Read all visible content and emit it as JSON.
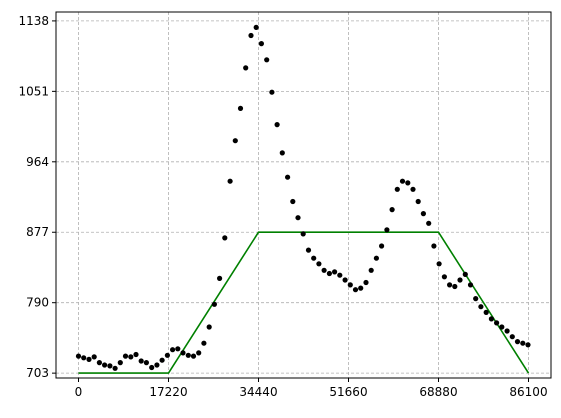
{
  "chart_data": {
    "type": "scatter",
    "title": "",
    "xlabel": "",
    "ylabel": "",
    "xlim": [
      -4305,
      90405
    ],
    "ylim": [
      697,
      1149
    ],
    "grid": true,
    "x_ticks": [
      {
        "value": 0,
        "label": "0"
      },
      {
        "value": 17220,
        "label": "17220"
      },
      {
        "value": 34440,
        "label": "34440"
      },
      {
        "value": 51660,
        "label": "51660"
      },
      {
        "value": 68880,
        "label": "68880"
      },
      {
        "value": 86100,
        "label": "86100"
      }
    ],
    "y_ticks": [
      {
        "value": 703,
        "label": "703"
      },
      {
        "value": 790,
        "label": "790"
      },
      {
        "value": 877,
        "label": "877"
      },
      {
        "value": 964,
        "label": "964"
      },
      {
        "value": 1051,
        "label": "1051"
      },
      {
        "value": 1138,
        "label": "1138"
      }
    ],
    "colors": {
      "points": "#000000",
      "line": "#008000",
      "grid": "#b0b0b0"
    },
    "series": [
      {
        "kind": "line",
        "color": "#008000",
        "x": [
          0,
          17220,
          34440,
          68880,
          86100
        ],
        "y": [
          703,
          703,
          877,
          877,
          703
        ]
      },
      {
        "kind": "scatter",
        "color": "#000000",
        "x": [
          0,
          1000,
          2000,
          3000,
          4000,
          5000,
          6000,
          7000,
          8000,
          9000,
          10000,
          11000,
          12000,
          13000,
          14000,
          15000,
          16000,
          17000,
          18000,
          19000,
          20000,
          21000,
          22000,
          23000,
          24000,
          25000,
          26000,
          27000,
          28000,
          29000,
          30000,
          31000,
          32000,
          33000,
          34000,
          35000,
          36000,
          37000,
          38000,
          39000,
          40000,
          41000,
          42000,
          43000,
          44000,
          45000,
          46000,
          47000,
          48000,
          49000,
          50000,
          51000,
          52000,
          53000,
          54000,
          55000,
          56000,
          57000,
          58000,
          59000,
          60000,
          61000,
          62000,
          63000,
          64000,
          65000,
          66000,
          67000,
          68000,
          69000,
          70000,
          71000,
          72000,
          73000,
          74000,
          75000,
          76000,
          77000,
          78000,
          79000,
          80000,
          81000,
          82000,
          83000,
          84000,
          85000,
          86000
        ],
        "y": [
          724,
          722,
          720,
          723,
          716,
          713,
          712,
          709,
          716,
          724,
          723,
          726,
          718,
          716,
          710,
          713,
          719,
          725,
          732,
          733,
          728,
          725,
          724,
          728,
          740,
          760,
          788,
          820,
          870,
          940,
          990,
          1030,
          1080,
          1120,
          1130,
          1110,
          1090,
          1050,
          1010,
          975,
          945,
          915,
          895,
          875,
          855,
          845,
          838,
          830,
          826,
          828,
          824,
          818,
          812,
          806,
          808,
          815,
          830,
          845,
          860,
          880,
          905,
          930,
          940,
          938,
          930,
          915,
          900,
          888,
          860,
          838,
          822,
          812,
          810,
          818,
          825,
          812,
          795,
          785,
          778,
          770,
          765,
          760,
          755,
          748,
          742,
          740,
          738
        ]
      }
    ]
  }
}
